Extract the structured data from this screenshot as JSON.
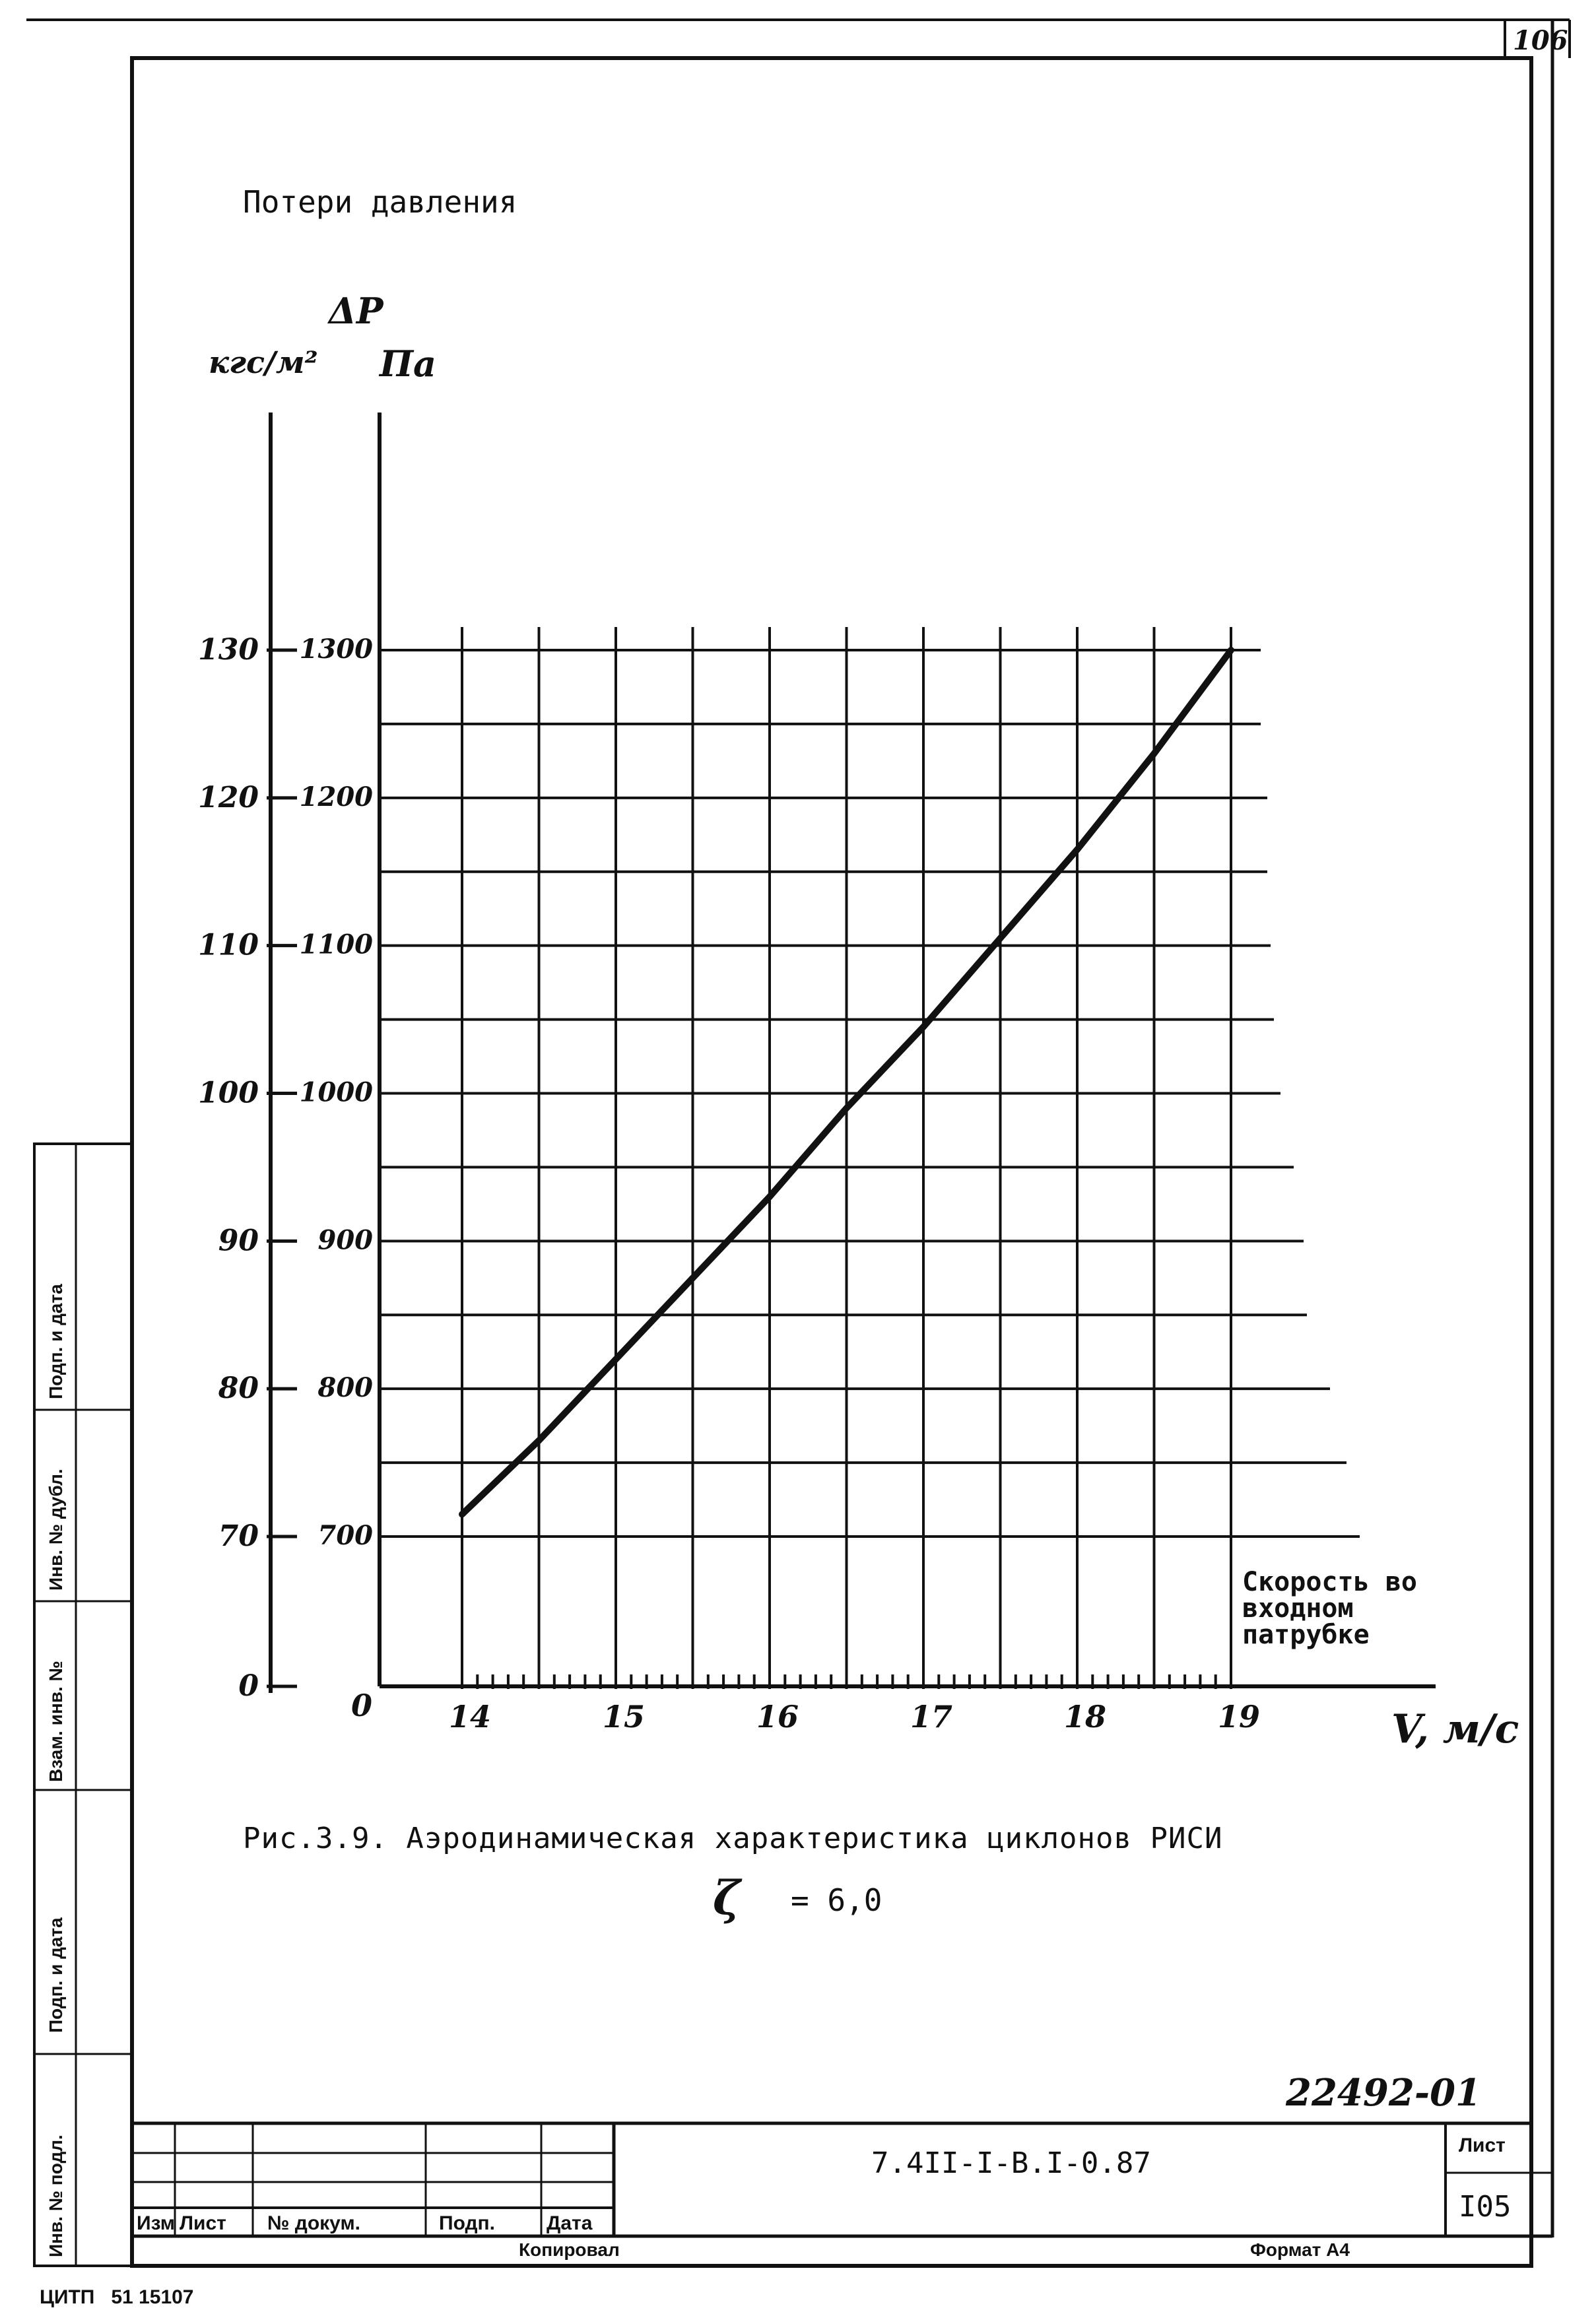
{
  "sheet": {
    "corner_number": "106",
    "heading": "Потери давления",
    "side_labels": [
      "Инв. № подл.",
      "Подп. и дата",
      "Взам. инв. №",
      "Инв. № дубл.",
      "Подп. и дата"
    ],
    "caption": "Рис.3.9. Аэродинамическая характеристика циклонов РИСИ",
    "zeta_symbol": "ζ",
    "zeta_value": "= 6,0",
    "stamp_number": "22492-01",
    "footer_left": "ЦИТП   51 15107",
    "copied": "Копировал",
    "format": "Формат А4"
  },
  "title_block": {
    "document_code": "7.4II-I-В.I-0.87",
    "sheet_label": "Лист",
    "sheet_number": "I05",
    "columns": [
      "Изм",
      "Лист",
      "№ докум.",
      "Подп.",
      "Дата"
    ]
  },
  "chart_data": {
    "type": "line",
    "title": "",
    "y_label_symbol": "ΔP",
    "y_unit_primary": "Па",
    "y_unit_secondary": "кгс/м²",
    "x_label_text": [
      "Скорость во",
      "входном",
      "патрубке"
    ],
    "x_unit": "V, м/с",
    "x_origin_label": "0",
    "xlim": [
      14,
      19
    ],
    "ylim": [
      700,
      1300
    ],
    "x_ticks": [
      14,
      15,
      16,
      17,
      18,
      19
    ],
    "x_tick_labels": [
      "14",
      "15",
      "16",
      "17",
      "18",
      "19"
    ],
    "y_ticks_pa": [
      700,
      800,
      900,
      1000,
      1100,
      1200,
      1300
    ],
    "y_tick_labels_pa": [
      "700",
      "800",
      "900",
      "1000",
      "1100",
      "1200",
      "1300"
    ],
    "y_ticks_kgs": [
      0,
      70,
      80,
      90,
      100,
      110,
      120,
      130
    ],
    "y_tick_labels_kgs": [
      "0",
      "70",
      "80",
      "90",
      "100",
      "110",
      "120",
      "130"
    ],
    "grid": true,
    "series": [
      {
        "x": [
          14,
          14.5,
          15,
          15.5,
          16,
          16.5,
          17,
          17.5,
          18,
          18.5,
          19
        ],
        "y": [
          715,
          765,
          820,
          875,
          930,
          990,
          1045,
          1105,
          1165,
          1230,
          1300
        ]
      }
    ]
  }
}
